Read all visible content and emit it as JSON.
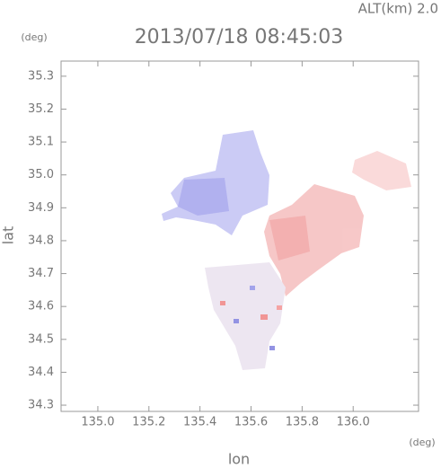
{
  "chart_data": {
    "type": "scatter",
    "title": "2013/07/18 08:45:03",
    "subtitle": "ALT(km) 2.0",
    "ylabel": "lat",
    "xlabel": "lon",
    "y_unit": "(deg)",
    "x_unit": "(deg)",
    "xlim": [
      134.856,
      136.256
    ],
    "ylim": [
      34.281,
      35.346
    ],
    "xticks": [
      {
        "value": 135,
        "label": "135.0"
      },
      135.2,
      135.4,
      135.6,
      135.8,
      {
        "value": 136,
        "label": "136.0"
      }
    ],
    "yticks": [
      34.3,
      34.4,
      34.5,
      34.6,
      34.7,
      34.8,
      34.9,
      {
        "value": 35,
        "label": "35.0"
      },
      35.1,
      35.2,
      35.3
    ]
  }
}
